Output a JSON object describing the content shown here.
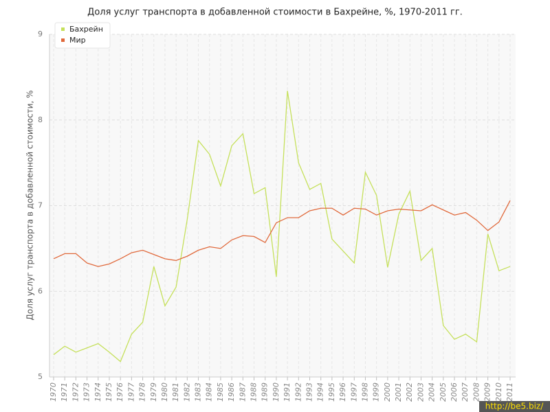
{
  "chart_data": {
    "type": "line",
    "title": "Доля услуг транспорта в добавленной стоимости в Бахрейне, %, 1970-2011 гг.",
    "y_label": "Доля услуг транспорта в добавленной стоимости, %",
    "watermark": "http://be5.biz/",
    "x": [
      1970,
      1971,
      1972,
      1973,
      1974,
      1975,
      1976,
      1977,
      1978,
      1979,
      1980,
      1981,
      1982,
      1983,
      1984,
      1985,
      1986,
      1987,
      1988,
      1989,
      1990,
      1991,
      1992,
      1993,
      1994,
      1995,
      1996,
      1997,
      1998,
      1999,
      2000,
      2001,
      2002,
      2003,
      2004,
      2005,
      2006,
      2007,
      2008,
      2009,
      2010,
      2011
    ],
    "xlim": [
      1970,
      2011
    ],
    "xticks": [
      1970,
      1971,
      1972,
      1973,
      1974,
      1975,
      1976,
      1977,
      1978,
      1979,
      1980,
      1981,
      1982,
      1983,
      1984,
      1985,
      1986,
      1987,
      1988,
      1989,
      1990,
      1991,
      1992,
      1993,
      1994,
      1995,
      1996,
      1997,
      1998,
      1999,
      2000,
      2001,
      2002,
      2003,
      2004,
      2005,
      2006,
      2007,
      2008,
      2009,
      2010,
      2011
    ],
    "ylim": [
      5,
      9
    ],
    "yticks": [
      5,
      6,
      7,
      8,
      9
    ],
    "grid": true,
    "legend": "top-left",
    "series": [
      {
        "name": "Бахрейн",
        "color": "#c5e05a",
        "values": [
          5.26,
          5.36,
          5.29,
          5.34,
          5.39,
          5.29,
          5.18,
          5.5,
          5.64,
          6.29,
          5.83,
          6.05,
          6.84,
          7.76,
          7.6,
          7.23,
          7.7,
          7.84,
          7.14,
          7.21,
          6.17,
          8.34,
          7.5,
          7.19,
          7.26,
          6.61,
          6.47,
          6.33,
          7.39,
          7.12,
          6.28,
          6.9,
          7.17,
          6.36,
          6.5,
          5.6,
          5.44,
          5.5,
          5.41,
          6.67,
          6.24,
          6.29
        ]
      },
      {
        "name": "Мир",
        "color": "#e0683a",
        "values": [
          6.38,
          6.44,
          6.44,
          6.33,
          6.29,
          6.32,
          6.38,
          6.45,
          6.48,
          6.43,
          6.38,
          6.36,
          6.41,
          6.48,
          6.52,
          6.5,
          6.6,
          6.65,
          6.64,
          6.57,
          6.8,
          6.86,
          6.86,
          6.94,
          6.97,
          6.97,
          6.89,
          6.97,
          6.96,
          6.89,
          6.94,
          6.96,
          6.95,
          6.94,
          7.01,
          6.95,
          6.89,
          6.92,
          6.83,
          6.71,
          6.81,
          7.06
        ]
      }
    ]
  }
}
